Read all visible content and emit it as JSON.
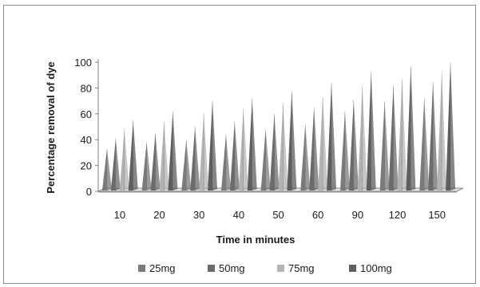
{
  "chart_data": {
    "type": "bar",
    "bar_shape": "pyramid-3d",
    "categories": [
      "10",
      "20",
      "30",
      "40",
      "50",
      "60",
      "90",
      "120",
      "150"
    ],
    "series": [
      {
        "name": "25mg",
        "color": "#7a7a7a",
        "values": [
          33,
          38,
          40,
          44,
          48,
          52,
          62,
          70,
          72
        ]
      },
      {
        "name": "50mg",
        "color": "#6b6b6b",
        "values": [
          41,
          45,
          50,
          54,
          60,
          65,
          71,
          82,
          85
        ]
      },
      {
        "name": "75mg",
        "color": "#b3b3b3",
        "values": [
          48,
          54,
          60,
          64,
          68,
          73,
          82,
          87,
          92
        ]
      },
      {
        "name": "100mg",
        "color": "#5e5e5e",
        "values": [
          55,
          62,
          70,
          72,
          78,
          84,
          93,
          97,
          100
        ]
      }
    ],
    "xlabel": "Time in minutes",
    "ylabel": "Percentage removal of dye",
    "ylim": [
      0,
      100
    ],
    "yticks": [
      0,
      20,
      40,
      60,
      80,
      100
    ],
    "grid": false,
    "legend_position": "bottom"
  }
}
